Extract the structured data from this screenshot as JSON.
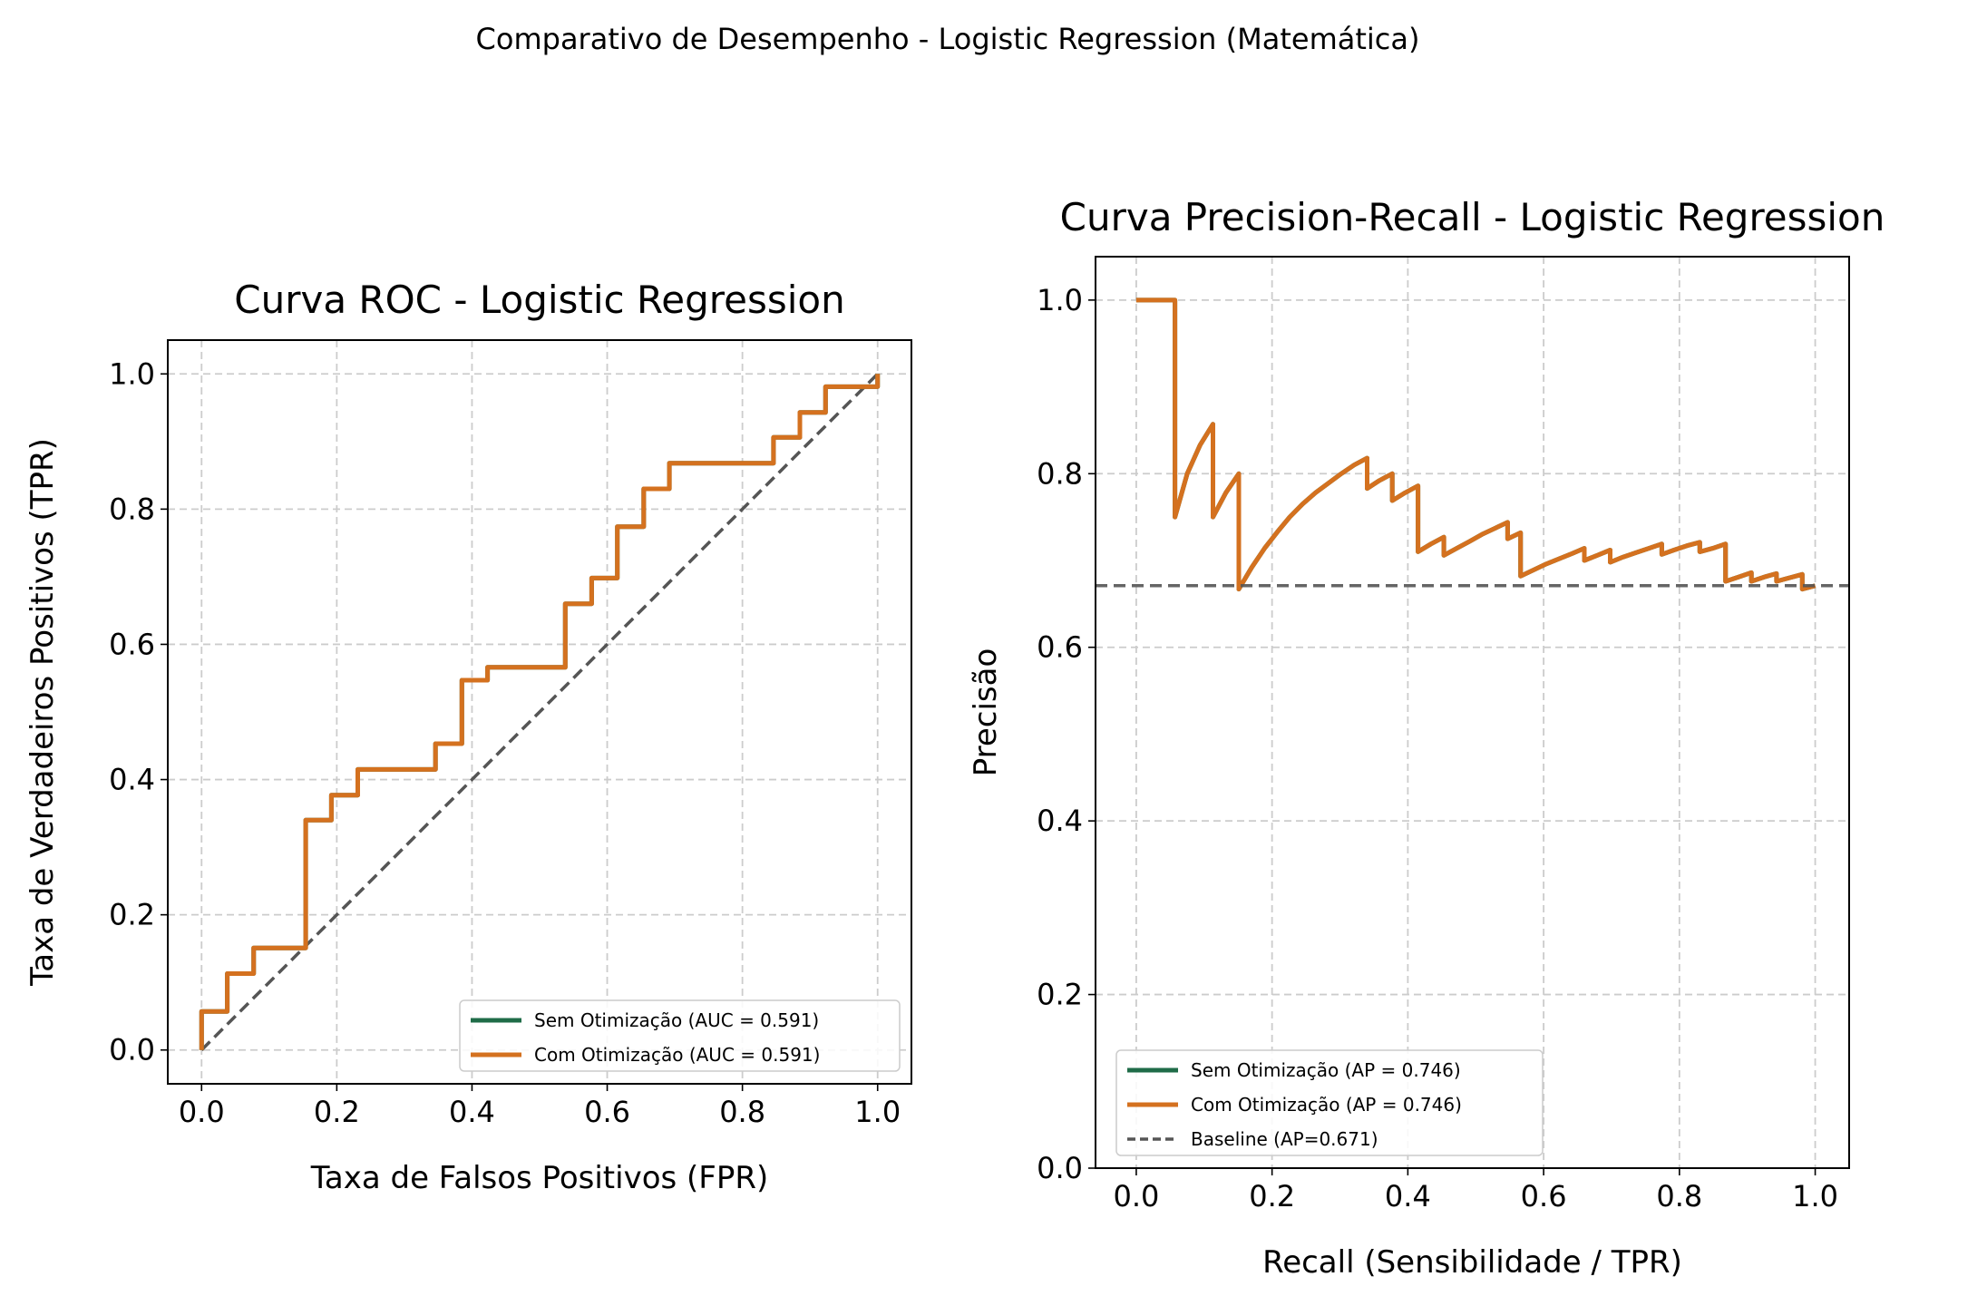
{
  "suptitle": "Comparativo de Desempenho - Logistic Regression (Matemática)",
  "colors": {
    "sem": "#1f6c48",
    "com": "#d4711f",
    "baseline": "#555555",
    "grid": "#cccccc"
  },
  "chart_data": [
    {
      "type": "line",
      "title": "Curva ROC - Logistic Regression",
      "xlabel": "Taxa de Falsos Positivos (FPR)",
      "ylabel": "Taxa de Verdadeiros Positivos (TPR)",
      "xlim": [
        -0.05,
        1.05
      ],
      "ylim": [
        -0.05,
        1.05
      ],
      "xticks": [
        "0.0",
        "0.2",
        "0.4",
        "0.6",
        "0.8",
        "1.0"
      ],
      "yticks": [
        "0.0",
        "0.2",
        "0.4",
        "0.6",
        "0.8",
        "1.0"
      ],
      "grid": true,
      "legend_loc": "lower right",
      "series": [
        {
          "name": "Sem Otimização (AUC = 0.591)",
          "color": "#1f6c48",
          "points": [
            [
              0,
              0
            ],
            [
              0,
              0.057
            ],
            [
              0.038,
              0.057
            ],
            [
              0.038,
              0.113
            ],
            [
              0.077,
              0.113
            ],
            [
              0.077,
              0.151
            ],
            [
              0.154,
              0.151
            ],
            [
              0.154,
              0.34
            ],
            [
              0.192,
              0.34
            ],
            [
              0.192,
              0.377
            ],
            [
              0.231,
              0.377
            ],
            [
              0.231,
              0.415
            ],
            [
              0.346,
              0.415
            ],
            [
              0.346,
              0.453
            ],
            [
              0.385,
              0.453
            ],
            [
              0.385,
              0.547
            ],
            [
              0.423,
              0.547
            ],
            [
              0.423,
              0.566
            ],
            [
              0.538,
              0.566
            ],
            [
              0.538,
              0.66
            ],
            [
              0.577,
              0.66
            ],
            [
              0.577,
              0.698
            ],
            [
              0.615,
              0.698
            ],
            [
              0.615,
              0.774
            ],
            [
              0.654,
              0.774
            ],
            [
              0.654,
              0.83
            ],
            [
              0.692,
              0.83
            ],
            [
              0.692,
              0.868
            ],
            [
              0.846,
              0.868
            ],
            [
              0.846,
              0.906
            ],
            [
              0.885,
              0.906
            ],
            [
              0.885,
              0.943
            ],
            [
              0.923,
              0.943
            ],
            [
              0.923,
              0.981
            ],
            [
              1.0,
              0.981
            ],
            [
              1.0,
              1.0
            ]
          ]
        },
        {
          "name": "Com Otimização (AUC = 0.591)",
          "color": "#d4711f",
          "points": [
            [
              0,
              0
            ],
            [
              0,
              0.057
            ],
            [
              0.038,
              0.057
            ],
            [
              0.038,
              0.113
            ],
            [
              0.077,
              0.113
            ],
            [
              0.077,
              0.151
            ],
            [
              0.154,
              0.151
            ],
            [
              0.154,
              0.34
            ],
            [
              0.192,
              0.34
            ],
            [
              0.192,
              0.377
            ],
            [
              0.231,
              0.377
            ],
            [
              0.231,
              0.415
            ],
            [
              0.346,
              0.415
            ],
            [
              0.346,
              0.453
            ],
            [
              0.385,
              0.453
            ],
            [
              0.385,
              0.547
            ],
            [
              0.423,
              0.547
            ],
            [
              0.423,
              0.566
            ],
            [
              0.538,
              0.566
            ],
            [
              0.538,
              0.66
            ],
            [
              0.577,
              0.66
            ],
            [
              0.577,
              0.698
            ],
            [
              0.615,
              0.698
            ],
            [
              0.615,
              0.774
            ],
            [
              0.654,
              0.774
            ],
            [
              0.654,
              0.83
            ],
            [
              0.692,
              0.83
            ],
            [
              0.692,
              0.868
            ],
            [
              0.846,
              0.868
            ],
            [
              0.846,
              0.906
            ],
            [
              0.885,
              0.906
            ],
            [
              0.885,
              0.943
            ],
            [
              0.923,
              0.943
            ],
            [
              0.923,
              0.981
            ],
            [
              1.0,
              0.981
            ],
            [
              1.0,
              1.0
            ]
          ]
        }
      ],
      "reference_line": {
        "points": [
          [
            0,
            0
          ],
          [
            1,
            1
          ]
        ],
        "style": "dashed",
        "color": "#555555"
      }
    },
    {
      "type": "line",
      "title": "Curva Precision-Recall - Logistic Regression",
      "xlabel": "Recall (Sensibilidade / TPR)",
      "ylabel": "Precisão",
      "xlim": [
        -0.06,
        1.05
      ],
      "ylim": [
        0.0,
        1.05
      ],
      "xticks": [
        "0.0",
        "0.2",
        "0.4",
        "0.6",
        "0.8",
        "1.0"
      ],
      "yticks": [
        "0.0",
        "0.2",
        "0.4",
        "0.6",
        "0.8",
        "1.0"
      ],
      "grid": true,
      "legend_loc": "lower left",
      "series": [
        {
          "name": "Sem Otimização (AP = 0.746)",
          "color": "#1f6c48",
          "points": [
            [
              0,
              1.0
            ],
            [
              0.057,
              1.0
            ],
            [
              0.057,
              0.75
            ],
            [
              0.075,
              0.8
            ],
            [
              0.094,
              0.833
            ],
            [
              0.113,
              0.857
            ],
            [
              0.113,
              0.75
            ],
            [
              0.132,
              0.778
            ],
            [
              0.151,
              0.8
            ],
            [
              0.151,
              0.667
            ],
            [
              0.17,
              0.692
            ],
            [
              0.189,
              0.714
            ],
            [
              0.208,
              0.733
            ],
            [
              0.226,
              0.75
            ],
            [
              0.245,
              0.765
            ],
            [
              0.264,
              0.778
            ],
            [
              0.283,
              0.789
            ],
            [
              0.302,
              0.8
            ],
            [
              0.321,
              0.81
            ],
            [
              0.34,
              0.818
            ],
            [
              0.34,
              0.783
            ],
            [
              0.358,
              0.792
            ],
            [
              0.377,
              0.8
            ],
            [
              0.377,
              0.769
            ],
            [
              0.396,
              0.778
            ],
            [
              0.415,
              0.786
            ],
            [
              0.415,
              0.71
            ],
            [
              0.434,
              0.719
            ],
            [
              0.453,
              0.727
            ],
            [
              0.453,
              0.706
            ],
            [
              0.472,
              0.714
            ],
            [
              0.491,
              0.722
            ],
            [
              0.509,
              0.73
            ],
            [
              0.528,
              0.737
            ],
            [
              0.547,
              0.744
            ],
            [
              0.547,
              0.725
            ],
            [
              0.566,
              0.732
            ],
            [
              0.566,
              0.682
            ],
            [
              0.585,
              0.689
            ],
            [
              0.604,
              0.696
            ],
            [
              0.623,
              0.702
            ],
            [
              0.642,
              0.708
            ],
            [
              0.66,
              0.714
            ],
            [
              0.66,
              0.7
            ],
            [
              0.679,
              0.706
            ],
            [
              0.698,
              0.712
            ],
            [
              0.698,
              0.698
            ],
            [
              0.717,
              0.704
            ],
            [
              0.736,
              0.709
            ],
            [
              0.755,
              0.714
            ],
            [
              0.774,
              0.719
            ],
            [
              0.774,
              0.707
            ],
            [
              0.792,
              0.712
            ],
            [
              0.811,
              0.717
            ],
            [
              0.83,
              0.721
            ],
            [
              0.83,
              0.71
            ],
            [
              0.849,
              0.714
            ],
            [
              0.868,
              0.719
            ],
            [
              0.868,
              0.676
            ],
            [
              0.887,
              0.681
            ],
            [
              0.906,
              0.686
            ],
            [
              0.906,
              0.676
            ],
            [
              0.925,
              0.681
            ],
            [
              0.943,
              0.685
            ],
            [
              0.943,
              0.676
            ],
            [
              0.962,
              0.68
            ],
            [
              0.981,
              0.684
            ],
            [
              0.981,
              0.667
            ],
            [
              1.0,
              0.671
            ]
          ]
        },
        {
          "name": "Com Otimização (AP = 0.746)",
          "color": "#d4711f",
          "points": [
            [
              0,
              1.0
            ],
            [
              0.057,
              1.0
            ],
            [
              0.057,
              0.75
            ],
            [
              0.075,
              0.8
            ],
            [
              0.094,
              0.833
            ],
            [
              0.113,
              0.857
            ],
            [
              0.113,
              0.75
            ],
            [
              0.132,
              0.778
            ],
            [
              0.151,
              0.8
            ],
            [
              0.151,
              0.667
            ],
            [
              0.17,
              0.692
            ],
            [
              0.189,
              0.714
            ],
            [
              0.208,
              0.733
            ],
            [
              0.226,
              0.75
            ],
            [
              0.245,
              0.765
            ],
            [
              0.264,
              0.778
            ],
            [
              0.283,
              0.789
            ],
            [
              0.302,
              0.8
            ],
            [
              0.321,
              0.81
            ],
            [
              0.34,
              0.818
            ],
            [
              0.34,
              0.783
            ],
            [
              0.358,
              0.792
            ],
            [
              0.377,
              0.8
            ],
            [
              0.377,
              0.769
            ],
            [
              0.396,
              0.778
            ],
            [
              0.415,
              0.786
            ],
            [
              0.415,
              0.71
            ],
            [
              0.434,
              0.719
            ],
            [
              0.453,
              0.727
            ],
            [
              0.453,
              0.706
            ],
            [
              0.472,
              0.714
            ],
            [
              0.491,
              0.722
            ],
            [
              0.509,
              0.73
            ],
            [
              0.528,
              0.737
            ],
            [
              0.547,
              0.744
            ],
            [
              0.547,
              0.725
            ],
            [
              0.566,
              0.732
            ],
            [
              0.566,
              0.682
            ],
            [
              0.585,
              0.689
            ],
            [
              0.604,
              0.696
            ],
            [
              0.623,
              0.702
            ],
            [
              0.642,
              0.708
            ],
            [
              0.66,
              0.714
            ],
            [
              0.66,
              0.7
            ],
            [
              0.679,
              0.706
            ],
            [
              0.698,
              0.712
            ],
            [
              0.698,
              0.698
            ],
            [
              0.717,
              0.704
            ],
            [
              0.736,
              0.709
            ],
            [
              0.755,
              0.714
            ],
            [
              0.774,
              0.719
            ],
            [
              0.774,
              0.707
            ],
            [
              0.792,
              0.712
            ],
            [
              0.811,
              0.717
            ],
            [
              0.83,
              0.721
            ],
            [
              0.83,
              0.71
            ],
            [
              0.849,
              0.714
            ],
            [
              0.868,
              0.719
            ],
            [
              0.868,
              0.676
            ],
            [
              0.887,
              0.681
            ],
            [
              0.906,
              0.686
            ],
            [
              0.906,
              0.676
            ],
            [
              0.925,
              0.681
            ],
            [
              0.943,
              0.685
            ],
            [
              0.943,
              0.676
            ],
            [
              0.962,
              0.68
            ],
            [
              0.981,
              0.684
            ],
            [
              0.981,
              0.667
            ],
            [
              1.0,
              0.671
            ]
          ]
        }
      ],
      "reference_line": {
        "name": "Baseline (AP=0.671)",
        "y": 0.671,
        "style": "dashed",
        "color": "#555555"
      }
    }
  ]
}
